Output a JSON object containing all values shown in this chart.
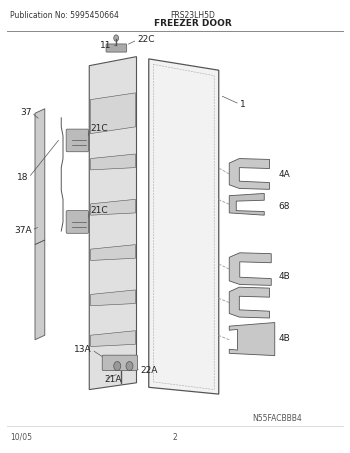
{
  "pub_no": "Publication No: 5995450664",
  "model": "FRS23LH5D",
  "section": "FREEZER DOOR",
  "diagram_id": "N55FACBBB4",
  "date": "10/05",
  "page": "2",
  "bg_color": "#ffffff",
  "line_color": "#555555",
  "label_fontsize": 6.5
}
